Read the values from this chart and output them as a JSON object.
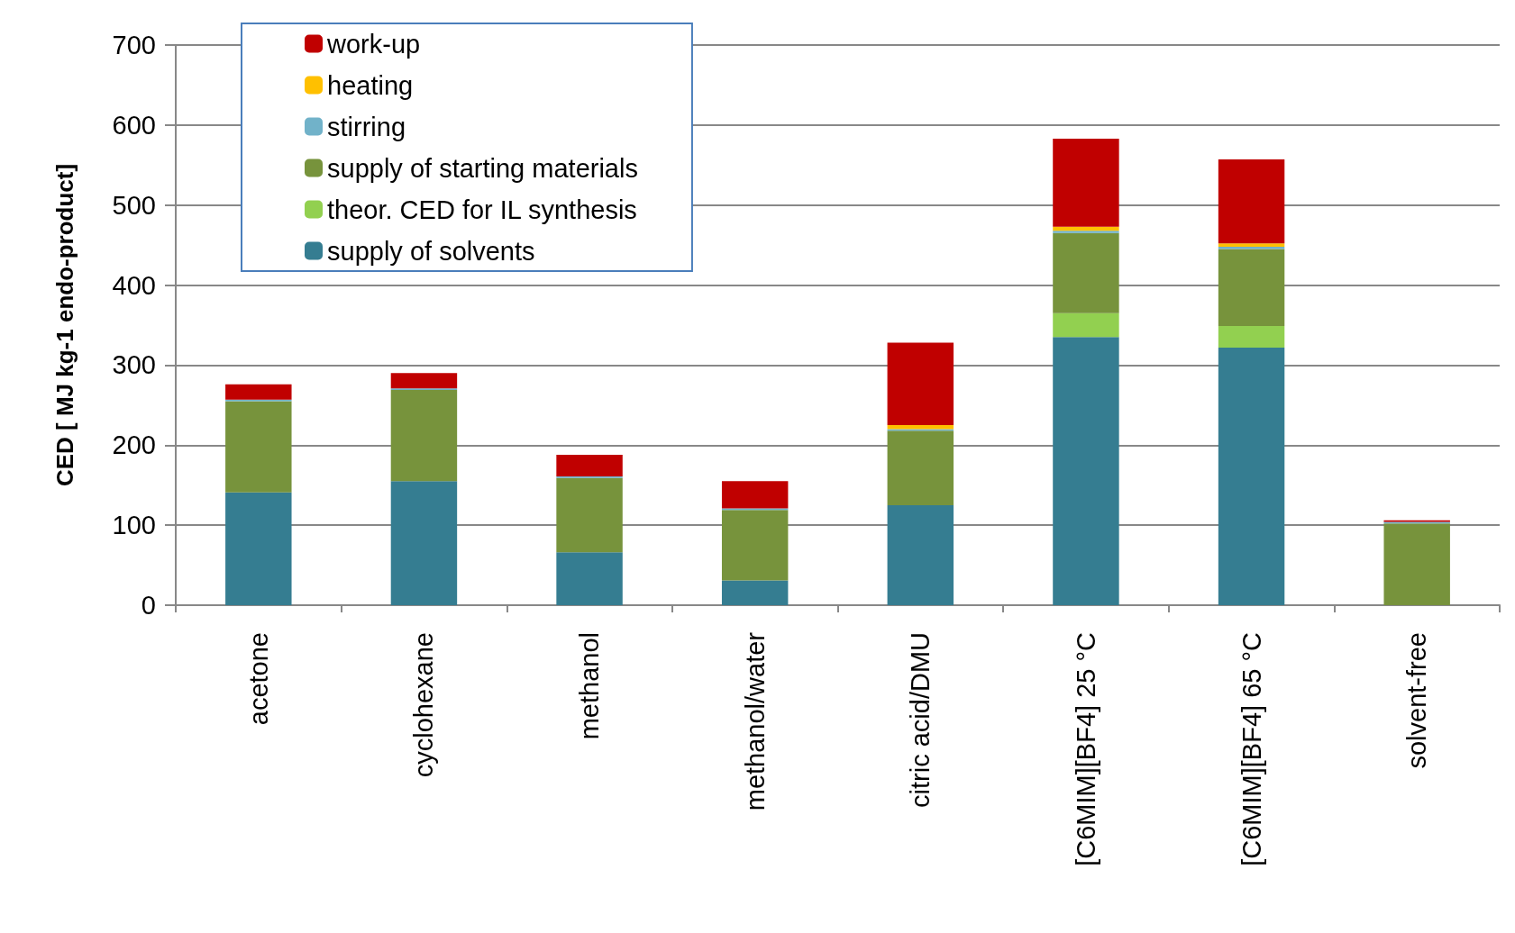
{
  "chart_data": {
    "type": "bar",
    "stacked": true,
    "ylabel": "CED [ MJ kg-1 endo-product]",
    "categories": [
      "acetone",
      "cyclohexane",
      "methanol",
      "methanol/water",
      "citric acid/DMU",
      "[C6MIM][BF4] 25 °C",
      "[C6MIM][BF4] 65 °C",
      "solvent-free"
    ],
    "series": [
      {
        "name": "supply of solvents",
        "color": "#357d91",
        "values": [
          141,
          155,
          66,
          31,
          125,
          335,
          322,
          0
        ]
      },
      {
        "name": "theor. CED for IL synthesis",
        "color": "#92d050",
        "values": [
          0,
          0,
          0,
          0,
          0,
          30,
          27,
          0
        ]
      },
      {
        "name": "supply of starting materials",
        "color": "#77933c",
        "values": [
          114,
          114,
          93,
          88,
          93,
          100,
          96,
          102
        ]
      },
      {
        "name": "stirring",
        "color": "#71b2c9",
        "values": [
          2,
          2,
          2,
          2,
          2,
          3,
          3,
          2
        ]
      },
      {
        "name": "heating",
        "color": "#ffc000",
        "values": [
          0,
          0,
          0,
          0,
          5,
          5,
          4,
          0
        ]
      },
      {
        "name": "work-up",
        "color": "#c00000",
        "values": [
          19,
          19,
          27,
          34,
          103,
          110,
          105,
          2
        ]
      }
    ],
    "ylim": [
      0,
      700
    ],
    "yticks": [
      0,
      100,
      200,
      300,
      400,
      500,
      600,
      700
    ],
    "grid": "y",
    "legend": "top left"
  }
}
